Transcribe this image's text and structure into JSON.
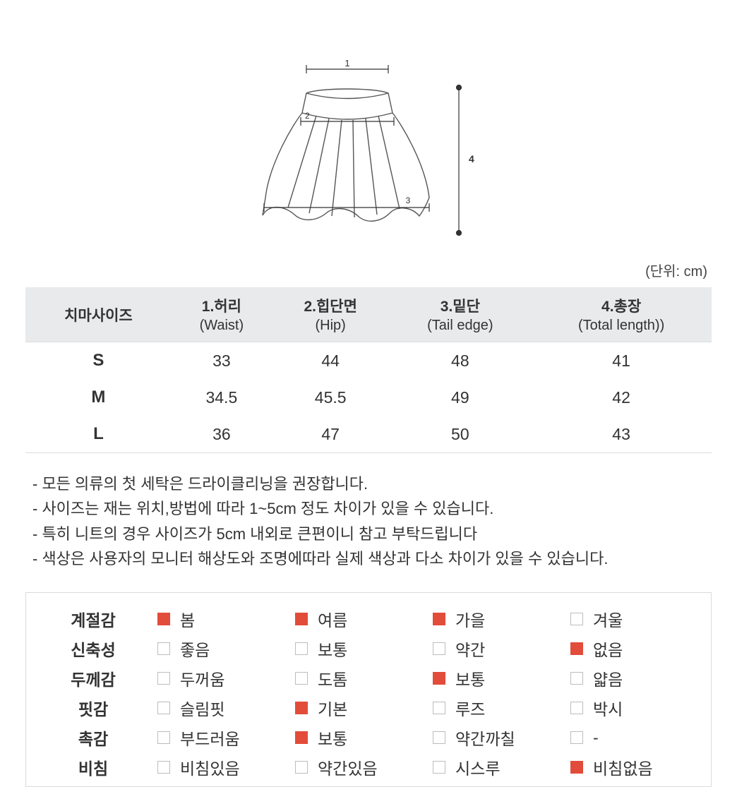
{
  "unitLabel": "(단위: cm)",
  "diagram": {
    "labels": [
      "1",
      "2",
      "3",
      "4"
    ],
    "lineColor": "#555555",
    "fillColor": "#ffffff"
  },
  "sizeTable": {
    "headerLabel": "치마사이즈",
    "columns": [
      {
        "top": "1.허리",
        "sub": "(Waist)"
      },
      {
        "top": "2.힙단면",
        "sub": "(Hip)"
      },
      {
        "top": "3.밑단",
        "sub": "(Tail edge)"
      },
      {
        "top": "4.총장",
        "sub": "(Total length))"
      }
    ],
    "rows": [
      {
        "label": "S",
        "values": [
          "33",
          "44",
          "48",
          "41"
        ]
      },
      {
        "label": "M",
        "values": [
          "34.5",
          "45.5",
          "49",
          "42"
        ]
      },
      {
        "label": "L",
        "values": [
          "36",
          "47",
          "50",
          "43"
        ]
      }
    ]
  },
  "notes": [
    "- 모든 의류의 첫 세탁은 드라이클리닝을 권장합니다.",
    "- 사이즈는 재는 위치,방법에 따라 1~5cm 정도 차이가 있을 수 있습니다.",
    "- 특히 니트의 경우 사이즈가 5cm 내외로 큰편이니 참고 부탁드립니다",
    "- 색상은 사용자의 모니터 해상도와 조명에따라 실제 색상과 다소 차이가 있을 수 있습니다."
  ],
  "attributes": {
    "checkColor": "#e24c3a",
    "rows": [
      {
        "label": "계절감",
        "options": [
          {
            "text": "봄",
            "checked": true
          },
          {
            "text": "여름",
            "checked": true
          },
          {
            "text": "가을",
            "checked": true
          },
          {
            "text": "겨울",
            "checked": false
          }
        ]
      },
      {
        "label": "신축성",
        "options": [
          {
            "text": "좋음",
            "checked": false
          },
          {
            "text": "보통",
            "checked": false
          },
          {
            "text": "약간",
            "checked": false
          },
          {
            "text": "없음",
            "checked": true
          }
        ]
      },
      {
        "label": "두께감",
        "options": [
          {
            "text": "두꺼움",
            "checked": false
          },
          {
            "text": "도톰",
            "checked": false
          },
          {
            "text": "보통",
            "checked": true
          },
          {
            "text": "얇음",
            "checked": false
          }
        ]
      },
      {
        "label": "핏감",
        "options": [
          {
            "text": "슬림핏",
            "checked": false
          },
          {
            "text": "기본",
            "checked": true
          },
          {
            "text": "루즈",
            "checked": false
          },
          {
            "text": "박시",
            "checked": false
          }
        ]
      },
      {
        "label": "촉감",
        "options": [
          {
            "text": "부드러움",
            "checked": false
          },
          {
            "text": "보통",
            "checked": true
          },
          {
            "text": "약간까칠",
            "checked": false
          },
          {
            "text": "-",
            "checked": false
          }
        ]
      },
      {
        "label": "비침",
        "options": [
          {
            "text": "비침있음",
            "checked": false
          },
          {
            "text": "약간있음",
            "checked": false
          },
          {
            "text": "시스루",
            "checked": false
          },
          {
            "text": "비침없음",
            "checked": true
          }
        ]
      }
    ]
  }
}
